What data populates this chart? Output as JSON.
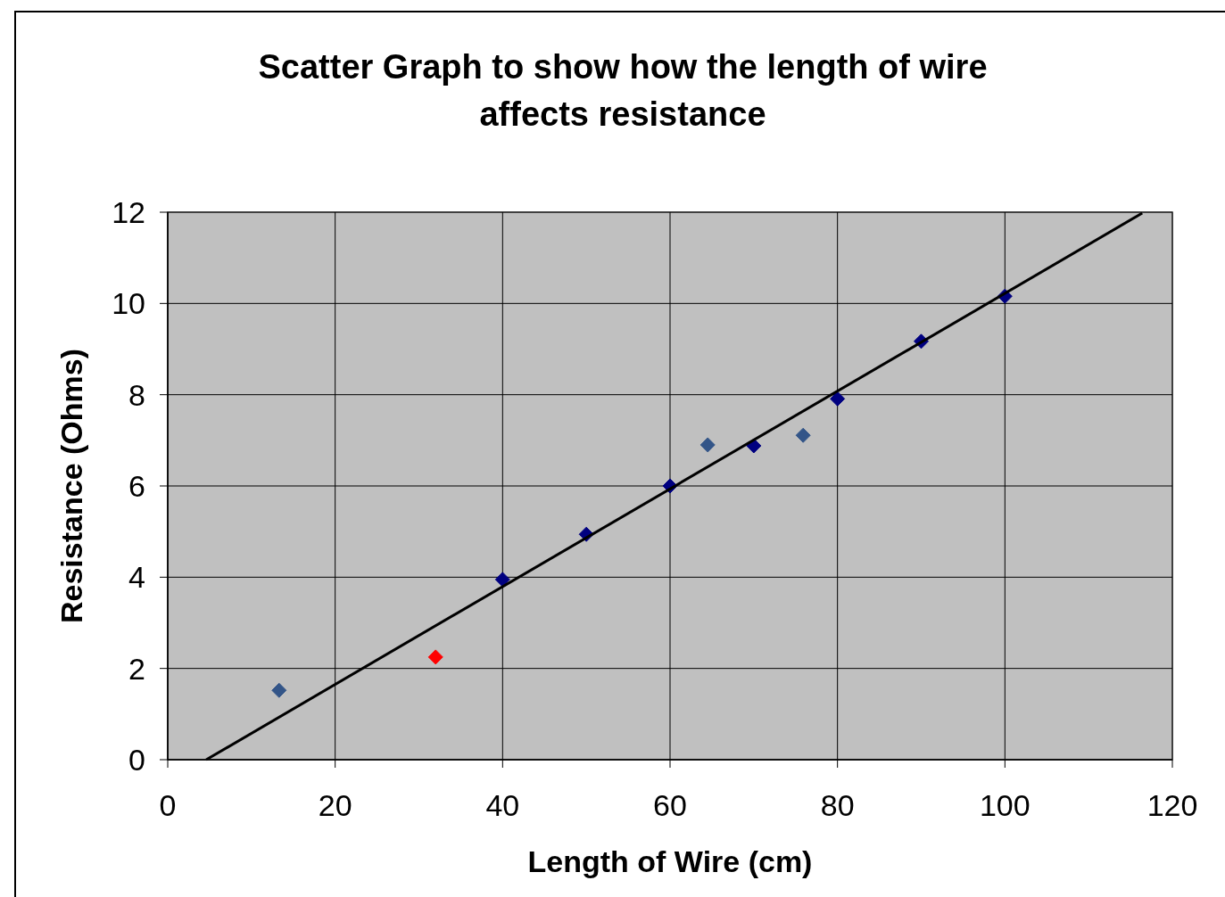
{
  "chart_data": {
    "type": "scatter",
    "title": "Scatter Graph to show how the length of wire affects resistance",
    "xlabel": "Length of Wire (cm)",
    "ylabel": "Resistance (Ohms)",
    "xlim": [
      0,
      120
    ],
    "xticks": [
      0,
      20,
      40,
      60,
      80,
      100,
      120
    ],
    "ylim": [
      0,
      12
    ],
    "yticks": [
      0,
      2,
      4,
      6,
      8,
      10,
      12
    ],
    "grid": true,
    "marker": "diamond",
    "series": [
      {
        "color": "#000080",
        "x": [
          40,
          50,
          60,
          70,
          80,
          90,
          100
        ],
        "values": [
          3.95,
          4.94,
          6.0,
          6.88,
          7.91,
          9.17,
          10.16
        ]
      },
      {
        "color": "#335588",
        "x": [
          13.3,
          64.5,
          75.9
        ],
        "values": [
          1.52,
          6.9,
          7.11
        ]
      },
      {
        "color": "#ff0000",
        "x": [
          32
        ],
        "values": [
          2.25
        ]
      },
      {
        "type": "line",
        "color": "#000000",
        "marker": "none",
        "line_style": "solid",
        "x": [
          4.6,
          116.4
        ],
        "values": [
          0,
          11.98
        ]
      }
    ]
  }
}
